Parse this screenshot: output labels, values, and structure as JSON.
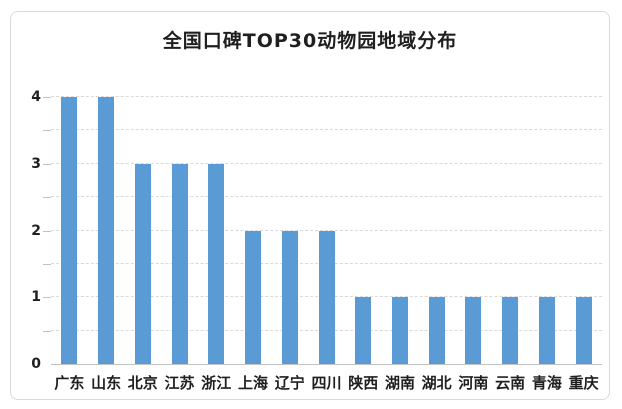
{
  "chart_data": {
    "type": "bar",
    "title": "全国口碑TOP30动物园地域分布",
    "categories": [
      "广东",
      "山东",
      "北京",
      "江苏",
      "浙江",
      "上海",
      "辽宁",
      "四川",
      "陕西",
      "湖南",
      "湖北",
      "河南",
      "云南",
      "青海",
      "重庆"
    ],
    "values": [
      4,
      4,
      3,
      3,
      3,
      2,
      2,
      2,
      1,
      1,
      1,
      1,
      1,
      1,
      1
    ],
    "xlabel": "",
    "ylabel": "",
    "ylim": [
      0,
      4
    ],
    "ytick_step": 1,
    "ytick_labels": [
      "0",
      "1",
      "2",
      "3",
      "4"
    ],
    "grid_step": 0.5,
    "grid_style": "horizontal dashed",
    "legend_position": "none"
  },
  "colors": {
    "bar": "#5B9BD5",
    "gridline": "#D9D9D9",
    "axis_line": "#C2C2C2",
    "frame_border": "#D9D9D9",
    "text": "#1F1F1F",
    "background": "#FFFFFF"
  }
}
